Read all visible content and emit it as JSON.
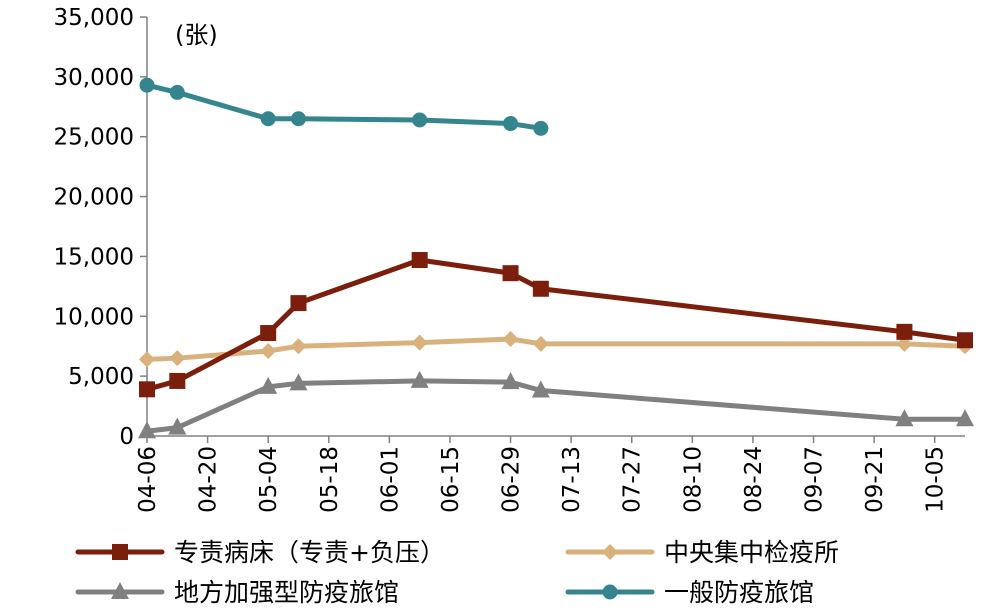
{
  "chart_data": {
    "type": "line",
    "unit_label": "(张)",
    "ylim": [
      0,
      35000
    ],
    "yticks": [
      0,
      5000,
      10000,
      15000,
      20000,
      25000,
      30000,
      35000
    ],
    "ytick_labels": [
      "0",
      "5,000",
      "10,000",
      "15,000",
      "20,000",
      "25,000",
      "30,000",
      "35,000"
    ],
    "xlim": [
      "04-06",
      "10-12"
    ],
    "xticks": [
      "04-06",
      "04-20",
      "05-04",
      "05-18",
      "06-01",
      "06-15",
      "06-29",
      "07-13",
      "07-27",
      "08-10",
      "08-24",
      "09-07",
      "09-21",
      "10-05"
    ],
    "grid": false,
    "legend_position": "bottom",
    "series": [
      {
        "name": "专责病床（专责+负压）",
        "color": "#7b1e0c",
        "marker": "square",
        "x": [
          "04-06",
          "04-13",
          "05-04",
          "05-11",
          "06-08",
          "06-29",
          "07-06",
          "09-28",
          "10-12"
        ],
        "values": [
          3900,
          4600,
          8600,
          11100,
          14700,
          13600,
          12300,
          8700,
          8000
        ]
      },
      {
        "name": "中央集中检疫所",
        "color": "#d9b17d",
        "marker": "diamond",
        "x": [
          "04-06",
          "04-13",
          "05-04",
          "05-11",
          "06-08",
          "06-29",
          "07-06",
          "09-28",
          "10-12"
        ],
        "values": [
          6400,
          6500,
          7100,
          7500,
          7800,
          8100,
          7700,
          7700,
          7500
        ]
      },
      {
        "name": "地方加强型防疫旅馆",
        "color": "#808080",
        "marker": "triangle",
        "x": [
          "04-06",
          "04-13",
          "05-04",
          "05-11",
          "06-08",
          "06-29",
          "07-06",
          "09-28",
          "10-12"
        ],
        "values": [
          400,
          700,
          4100,
          4400,
          4600,
          4500,
          3800,
          1400,
          1400
        ]
      },
      {
        "name": "一般防疫旅馆",
        "color": "#35858f",
        "marker": "circle",
        "x": [
          "04-06",
          "04-13",
          "05-04",
          "05-11",
          "06-08",
          "06-29",
          "07-06"
        ],
        "values": [
          29300,
          28700,
          26500,
          26500,
          26400,
          26100,
          25700
        ]
      }
    ]
  }
}
